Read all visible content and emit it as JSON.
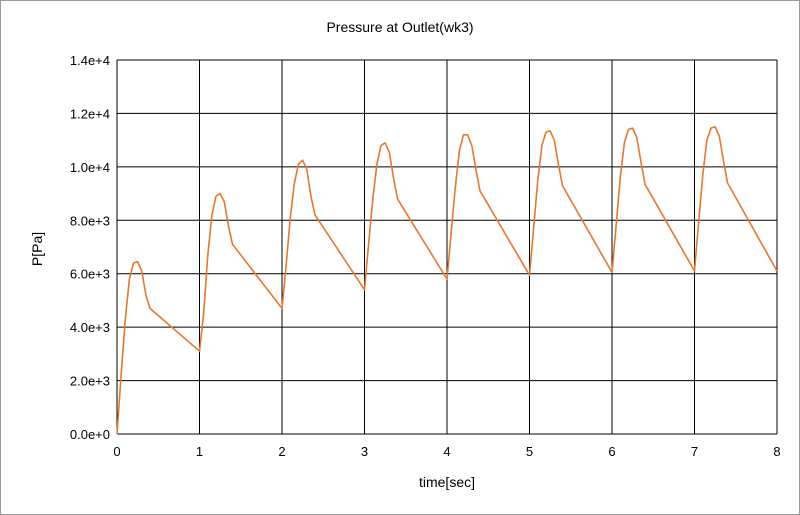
{
  "chart_data": {
    "type": "line",
    "title": "Pressure at Outlet(wk3)",
    "xlabel": "time[sec]",
    "ylabel": "P[Pa]",
    "xlim": [
      0,
      8
    ],
    "ylim": [
      0,
      14000
    ],
    "x_ticks": [
      0,
      1,
      2,
      3,
      4,
      5,
      6,
      7,
      8
    ],
    "x_tick_labels": [
      "0",
      "1",
      "2",
      "3",
      "4",
      "5",
      "6",
      "7",
      "8"
    ],
    "y_ticks": [
      0,
      2000,
      4000,
      6000,
      8000,
      10000,
      12000,
      14000
    ],
    "y_tick_labels": [
      "0.0e+0",
      "2.0e+3",
      "4.0e+3",
      "6.0e+3",
      "8.0e+3",
      "1.0e+4",
      "1.2e+4",
      "1.4e+4"
    ],
    "grid": true,
    "legend": "none",
    "series": [
      {
        "color": "#e8772e",
        "x": [
          0,
          0.05,
          0.1,
          0.15,
          0.2,
          0.25,
          0.3,
          0.35,
          0.4,
          1.0,
          1.05,
          1.1,
          1.15,
          1.2,
          1.25,
          1.3,
          1.35,
          1.4,
          2.0,
          2.05,
          2.1,
          2.15,
          2.2,
          2.25,
          2.3,
          2.35,
          2.4,
          3.0,
          3.05,
          3.1,
          3.15,
          3.2,
          3.25,
          3.3,
          3.35,
          3.4,
          4.0,
          4.05,
          4.1,
          4.15,
          4.2,
          4.25,
          4.3,
          4.35,
          4.4,
          5.0,
          5.05,
          5.1,
          5.15,
          5.2,
          5.25,
          5.3,
          5.35,
          5.4,
          6.0,
          6.05,
          6.1,
          6.15,
          6.2,
          6.25,
          6.3,
          6.35,
          6.4,
          7.0,
          7.05,
          7.1,
          7.15,
          7.2,
          7.25,
          7.3,
          7.35,
          7.4,
          8.0
        ],
        "y": [
          0,
          2200,
          4300,
          5800,
          6400,
          6450,
          6100,
          5200,
          4700,
          3100,
          4500,
          6700,
          8200,
          8900,
          9000,
          8700,
          7800,
          7100,
          4700,
          6300,
          8100,
          9400,
          10100,
          10250,
          9900,
          8900,
          8200,
          5400,
          7100,
          8800,
          10100,
          10800,
          10900,
          10550,
          9600,
          8800,
          5800,
          7500,
          9200,
          10600,
          11200,
          11200,
          10800,
          9900,
          9100,
          5950,
          7700,
          9500,
          10800,
          11300,
          11350,
          11000,
          10100,
          9300,
          6050,
          7800,
          9600,
          10900,
          11400,
          11450,
          11100,
          10200,
          9350,
          6100,
          7900,
          9700,
          11000,
          11450,
          11500,
          11150,
          10250,
          9400,
          6100
        ]
      }
    ]
  }
}
